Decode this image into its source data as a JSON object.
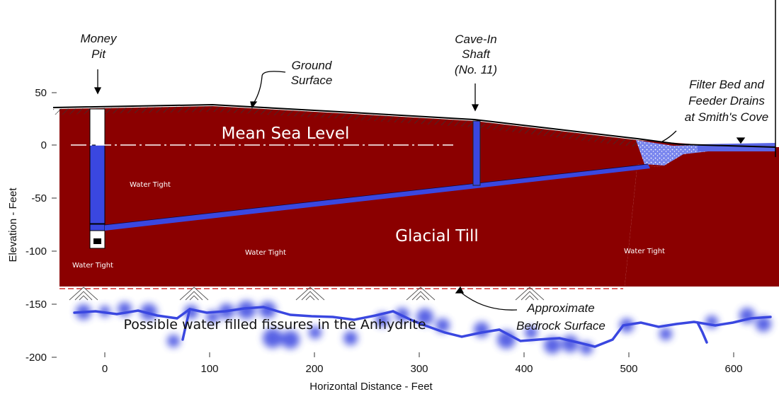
{
  "labels": {
    "money_pit_l1": "Money",
    "money_pit_l2": "Pit",
    "ground_l1": "Ground",
    "ground_l2": "Surface",
    "cave_l1": "Cave-In",
    "cave_l2": "Shaft",
    "cave_l3": "(No. 11)",
    "filter_l1": "Filter Bed and",
    "filter_l2": "Feeder Drains",
    "filter_l3": "at Smith's Cove",
    "msl": "Mean Sea Level",
    "glacial": "Glacial Till",
    "wt1": "Water Tight",
    "wt2": "Water Tight",
    "wt3": "Water Tight",
    "wt4": "Water Tight",
    "fissures": "Possible water filled fissures in the Anhydrite",
    "bedrock_l1": "Approximate",
    "bedrock_l2": "Bedrock Surface"
  },
  "axes": {
    "xlabel": "Horizontal Distance - Feet",
    "ylabel": "Elevation - Feet",
    "x_ticks": [
      "0",
      "100",
      "200",
      "300",
      "400",
      "500",
      "600"
    ],
    "y_ticks": [
      "50",
      "0",
      "-50",
      "-100",
      "-150",
      "-200"
    ]
  },
  "colors": {
    "till": "#8b0000",
    "water": "#3a47e0",
    "filter": "#6a78e8"
  }
}
